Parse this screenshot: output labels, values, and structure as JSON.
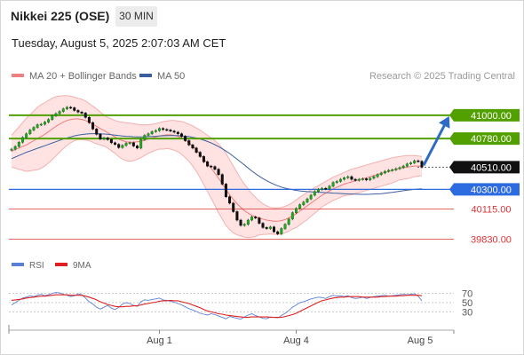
{
  "header": {
    "title": "Nikkei 225 (OSE)",
    "timeframe": "30 MIN",
    "datetime": "Tuesday, August 5, 2025 2:07:03 AM CET",
    "research": "Research © 2025 Trading Central"
  },
  "colors": {
    "support": "#2d6be0",
    "resistance": "#52a000",
    "minor_level": "#dd3333",
    "bollinger": "#ff9a9a",
    "ma50": "#3a5fa0",
    "rsi": "#5b7fd6",
    "rsi_ma": "#e02020",
    "arrow": "#2e6bc5"
  },
  "chart_data": {
    "type": "candlestick",
    "title": "Nikkei 225 (OSE)",
    "xlabel": "",
    "ylabel": "",
    "x_ticks": [
      "Aug 1",
      "Aug 4",
      "Aug 5"
    ],
    "legend": [
      {
        "name": "MA 20 + Bollinger Bands",
        "color": "#f08080"
      },
      {
        "name": "MA 50",
        "color": "#3a5fa0"
      }
    ],
    "ylim": [
      39700,
      41250
    ],
    "last_price": 40510.0,
    "levels": [
      {
        "value": 41000.0,
        "label": "41000.00",
        "role": "resistance"
      },
      {
        "value": 40780.0,
        "label": "40780.00",
        "role": "resistance"
      },
      {
        "value": 40510.0,
        "label": "40510.00",
        "role": "last"
      },
      {
        "value": 40300.0,
        "label": "40300.00",
        "role": "support"
      },
      {
        "value": 40115.0,
        "label": "40115.00",
        "role": "minor"
      },
      {
        "value": 39830.0,
        "label": "39830.00",
        "role": "minor"
      }
    ],
    "forecast_arrow": {
      "from": 40510,
      "to": 40980
    },
    "close": [
      40680,
      40705,
      40745,
      40790,
      40825,
      40860,
      40885,
      40910,
      40915,
      40935,
      40960,
      40995,
      41015,
      41035,
      41060,
      41075,
      41070,
      41045,
      41030,
      41020,
      40980,
      40930,
      40870,
      40820,
      40775,
      40785,
      40770,
      40740,
      40725,
      40695,
      40715,
      40735,
      40740,
      40710,
      40690,
      40770,
      40810,
      40825,
      40845,
      40855,
      40875,
      40865,
      40860,
      40850,
      40840,
      40825,
      40800,
      40760,
      40720,
      40690,
      40650,
      40610,
      40560,
      40520,
      40515,
      40490,
      40440,
      40350,
      40230,
      40170,
      40090,
      40010,
      39960,
      39970,
      40010,
      40040,
      40030,
      39980,
      39940,
      39930,
      39945,
      39900,
      39880,
      39930,
      39970,
      40020,
      40080,
      40120,
      40155,
      40180,
      40210,
      40245,
      40280,
      40300,
      40310,
      40305,
      40330,
      40365,
      40375,
      40395,
      40410,
      40420,
      40395,
      40385,
      40395,
      40400,
      40390,
      40405,
      40420,
      40440,
      40455,
      40470,
      40480,
      40485,
      40495,
      40505,
      40520,
      40540,
      40550,
      40570,
      40565,
      40510
    ],
    "bb_upper": [
      40810,
      40850,
      40890,
      40930,
      40970,
      41005,
      41040,
      41075,
      41100,
      41120,
      41140,
      41160,
      41175,
      41180,
      41185,
      41185,
      41180,
      41170,
      41160,
      41150,
      41135,
      41110,
      41085,
      41060,
      41030,
      41000,
      40980,
      40965,
      40950,
      40940,
      40935,
      40930,
      40925,
      40920,
      40915,
      40910,
      40910,
      40910,
      40915,
      40920,
      40930,
      40940,
      40945,
      40950,
      40950,
      40945,
      40940,
      40930,
      40915,
      40900,
      40880,
      40860,
      40835,
      40810,
      40785,
      40760,
      40730,
      40690,
      40640,
      40580,
      40520,
      40460,
      40400,
      40350,
      40305,
      40260,
      40225,
      40190,
      40165,
      40145,
      40130,
      40125,
      40125,
      40130,
      40140,
      40155,
      40175,
      40200,
      40225,
      40250,
      40275,
      40295,
      40315,
      40335,
      40355,
      40375,
      40395,
      40415,
      40430,
      40445,
      40460,
      40475,
      40490,
      40500,
      40510,
      40520,
      40530,
      40540,
      40550,
      40560,
      40570,
      40580,
      40590,
      40600,
      40605,
      40610,
      40615,
      40620,
      40620,
      40620,
      40615,
      40610
    ],
    "bb_middle": [
      40660,
      40675,
      40690,
      40705,
      40720,
      40740,
      40760,
      40780,
      40800,
      40820,
      40845,
      40870,
      40895,
      40915,
      40935,
      40950,
      40960,
      40965,
      40965,
      40960,
      40950,
      40935,
      40915,
      40895,
      40875,
      40855,
      40835,
      40815,
      40795,
      40775,
      40760,
      40750,
      40745,
      40745,
      40750,
      40755,
      40765,
      40775,
      40785,
      40795,
      40805,
      40810,
      40815,
      40815,
      40810,
      40800,
      40785,
      40765,
      40740,
      40710,
      40675,
      40635,
      40590,
      40545,
      40500,
      40455,
      40405,
      40355,
      40300,
      40250,
      40205,
      40165,
      40130,
      40100,
      40075,
      40055,
      40040,
      40030,
      40020,
      40010,
      40005,
      40000,
      40000,
      40005,
      40015,
      40030,
      40050,
      40070,
      40095,
      40120,
      40145,
      40170,
      40195,
      40220,
      40245,
      40265,
      40285,
      40305,
      40320,
      40335,
      40350,
      40360,
      40370,
      40380,
      40390,
      40400,
      40410,
      40420,
      40430,
      40440,
      40450,
      40460,
      40470,
      40480,
      40490,
      40500,
      40505,
      40510,
      40515,
      40520,
      40520,
      40520
    ],
    "bb_lower": [
      40510,
      40500,
      40490,
      40480,
      40470,
      40475,
      40480,
      40485,
      40500,
      40520,
      40550,
      40580,
      40615,
      40650,
      40685,
      40715,
      40740,
      40760,
      40770,
      40770,
      40765,
      40760,
      40745,
      40730,
      40720,
      40710,
      40690,
      40665,
      40640,
      40610,
      40585,
      40570,
      40565,
      40570,
      40585,
      40600,
      40620,
      40640,
      40655,
      40670,
      40680,
      40680,
      40685,
      40680,
      40670,
      40655,
      40630,
      40600,
      40565,
      40520,
      40470,
      40410,
      40345,
      40280,
      40215,
      40150,
      40080,
      40020,
      39960,
      39920,
      39890,
      39870,
      39860,
      39850,
      39845,
      39850,
      39855,
      39870,
      39875,
      39875,
      39880,
      39875,
      39875,
      39880,
      39890,
      39905,
      39925,
      39940,
      39965,
      39990,
      40015,
      40045,
      40075,
      40105,
      40135,
      40155,
      40175,
      40195,
      40210,
      40225,
      40240,
      40245,
      40250,
      40260,
      40270,
      40280,
      40290,
      40300,
      40310,
      40320,
      40330,
      40340,
      40350,
      40360,
      40375,
      40390,
      40395,
      40400,
      40410,
      40420,
      40425,
      40430
    ],
    "ma50": [
      40590,
      40605,
      40620,
      40635,
      40650,
      40662,
      40675,
      40688,
      40700,
      40712,
      40725,
      40738,
      40750,
      40762,
      40775,
      40785,
      40795,
      40805,
      40812,
      40818,
      40822,
      40825,
      40826,
      40826,
      40825,
      40823,
      40820,
      40816,
      40812,
      40808,
      40804,
      40801,
      40799,
      40797,
      40796,
      40796,
      40797,
      40798,
      40800,
      40802,
      40804,
      40806,
      40807,
      40808,
      40808,
      40807,
      40805,
      40802,
      40798,
      40792,
      40785,
      40776,
      40765,
      40752,
      40738,
      40722,
      40704,
      40684,
      40662,
      40638,
      40612,
      40585,
      40558,
      40530,
      40502,
      40474,
      40448,
      40424,
      40402,
      40382,
      40364,
      40348,
      40334,
      40322,
      40312,
      40304,
      40297,
      40291,
      40286,
      40282,
      40279,
      40277,
      40275,
      40273,
      40271,
      40269,
      40267,
      40265,
      40263,
      40261,
      40259,
      40257,
      40256,
      40255,
      40254,
      40253,
      40253,
      40254,
      40256,
      40258,
      40260,
      40264,
      40268,
      40272,
      40277,
      40282,
      40287,
      40292,
      40296,
      40300,
      40303,
      40305
    ],
    "rsi": [
      45,
      50,
      55,
      60,
      62,
      65,
      63,
      66,
      68,
      65,
      67,
      70,
      72,
      71,
      68,
      66,
      63,
      65,
      69,
      67,
      60,
      52,
      47,
      40,
      36,
      40,
      44,
      38,
      35,
      40,
      47,
      50,
      48,
      44,
      42,
      52,
      56,
      55,
      57,
      58,
      60,
      56,
      55,
      53,
      51,
      48,
      45,
      41,
      37,
      34,
      31,
      27,
      25,
      23,
      26,
      24,
      21,
      18,
      15,
      20,
      18,
      16,
      14,
      19,
      23,
      26,
      22,
      19,
      16,
      15,
      19,
      18,
      17,
      22,
      27,
      33,
      40,
      45,
      50,
      52,
      55,
      58,
      60,
      62,
      61,
      59,
      63,
      66,
      64,
      65,
      63,
      65,
      61,
      59,
      60,
      62,
      59,
      61,
      63,
      64,
      65,
      66,
      64,
      65,
      66,
      67,
      68,
      67,
      68,
      69,
      64,
      54
    ],
    "rsi_ma": [
      55,
      56,
      57,
      58,
      60,
      61,
      62,
      63,
      64,
      64,
      65,
      66,
      67,
      67,
      67,
      67,
      66,
      66,
      66,
      66,
      64,
      62,
      59,
      56,
      52,
      49,
      46,
      44,
      42,
      41,
      41,
      42,
      42,
      43,
      43,
      45,
      47,
      48,
      50,
      51,
      53,
      54,
      54,
      55,
      54,
      54,
      52,
      50,
      48,
      45,
      42,
      39,
      35,
      32,
      30,
      28,
      26,
      25,
      23,
      22,
      21,
      20,
      19,
      18,
      18,
      19,
      19,
      19,
      19,
      19,
      18,
      18,
      18,
      18,
      20,
      22,
      24,
      27,
      31,
      35,
      39,
      43,
      47,
      51,
      54,
      56,
      58,
      60,
      61,
      62,
      62,
      63,
      63,
      63,
      63,
      62,
      62,
      62,
      62,
      62,
      63,
      63,
      64,
      64,
      64,
      65,
      65,
      66,
      66,
      66,
      66,
      65
    ],
    "rsi_legend": [
      {
        "name": "RSI",
        "color": "#5b7fd6"
      },
      {
        "name": "9MA",
        "color": "#e02020"
      }
    ],
    "rsi_ticks": [
      70,
      50,
      30
    ]
  }
}
